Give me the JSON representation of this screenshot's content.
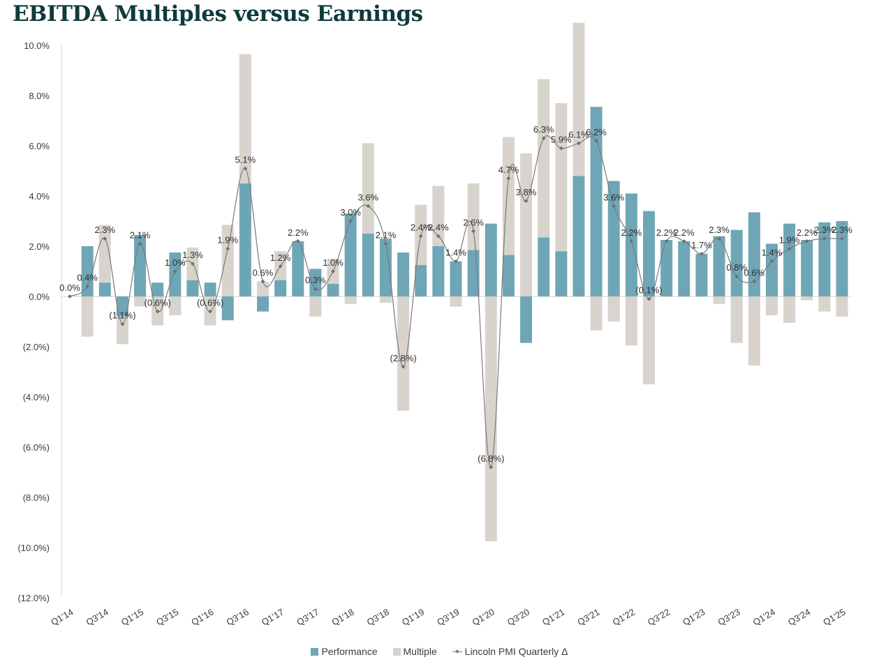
{
  "chart_data": {
    "type": "bar",
    "title": "EBITDA Multiples versus Earnings",
    "xlabel": "",
    "ylabel": "",
    "ylim": [
      -12,
      10
    ],
    "yticks": [
      10,
      8,
      6,
      4,
      2,
      0,
      -2,
      -4,
      -6,
      -8,
      -10,
      -12
    ],
    "ytick_labels": [
      "10.0%",
      "8.0%",
      "6.0%",
      "4.0%",
      "2.0%",
      "0.0%",
      "(2.0%)",
      "(4.0%)",
      "(6.0%)",
      "(8.0%)",
      "(10.0%)",
      "(12.0%)"
    ],
    "categories": [
      "Q1'14",
      "Q2'14",
      "Q3'14",
      "Q4'14",
      "Q1'15",
      "Q2'15",
      "Q3'15",
      "Q4'15",
      "Q1'16",
      "Q2'16",
      "Q3'16",
      "Q4'16",
      "Q1'17",
      "Q2'17",
      "Q3'17",
      "Q4'17",
      "Q1'18",
      "Q2'18",
      "Q3'18",
      "Q4'18",
      "Q1'19",
      "Q2'19",
      "Q3'19",
      "Q4'19",
      "Q1'20",
      "Q2'20",
      "Q3'20",
      "Q4'20",
      "Q1'21",
      "Q2'21",
      "Q3'21",
      "Q4'21",
      "Q1'22",
      "Q2'22",
      "Q3'22",
      "Q4'22",
      "Q1'23",
      "Q2'23",
      "Q3'23",
      "Q4'23",
      "Q1'24",
      "Q2'24",
      "Q3'24",
      "Q4'24",
      "Q1'25"
    ],
    "xtick_labels": [
      "Q1'14",
      "Q3'14",
      "Q1'15",
      "Q3'15",
      "Q1'16",
      "Q3'16",
      "Q1'17",
      "Q3'17",
      "Q1'18",
      "Q3'18",
      "Q1'19",
      "Q3'19",
      "Q1'20",
      "Q3'20",
      "Q1'21",
      "Q3'21",
      "Q1'22",
      "Q3'22",
      "Q1'23",
      "Q3'23",
      "Q1'24",
      "Q3'24",
      "Q1'25"
    ],
    "series": [
      {
        "name": "Performance",
        "type": "bar",
        "color": "#6fa6b6",
        "values": [
          0,
          2.0,
          0.55,
          -0.8,
          2.45,
          0.55,
          1.75,
          0.65,
          0.55,
          -0.95,
          4.5,
          -0.6,
          0.65,
          2.2,
          1.1,
          0.5,
          3.3,
          2.5,
          2.3,
          1.75,
          1.25,
          2.0,
          1.4,
          1.85,
          2.9,
          1.65,
          -1.85,
          2.35,
          1.8,
          4.8,
          7.55,
          4.6,
          4.1,
          3.4,
          2.25,
          2.2,
          1.7,
          2.4,
          2.65,
          3.35,
          2.1,
          2.9,
          2.25,
          2.95,
          3.0
        ]
      },
      {
        "name": "Multiple",
        "type": "bar",
        "color": "#d8d3cc",
        "values": [
          0,
          -1.6,
          2.3,
          -1.1,
          -0.4,
          -1.15,
          -0.75,
          1.3,
          -1.15,
          2.85,
          5.15,
          0.6,
          1.15,
          0,
          -0.8,
          1.0,
          -0.3,
          3.6,
          -0.25,
          -4.55,
          2.4,
          2.4,
          -0.4,
          2.65,
          -9.75,
          4.7,
          5.7,
          6.3,
          5.9,
          6.1,
          -1.35,
          -1.0,
          -1.95,
          -3.5,
          0,
          0,
          0,
          -0.3,
          -1.85,
          -2.75,
          -0.75,
          -1.05,
          -0.15,
          -0.6,
          -0.8
        ]
      },
      {
        "name": "Lincoln PMI Quarterly Δ",
        "type": "line",
        "color": "#7a7a7a",
        "values": [
          0.0,
          0.4,
          2.3,
          -1.1,
          2.1,
          -0.6,
          1.0,
          1.3,
          -0.6,
          1.9,
          5.1,
          0.6,
          1.2,
          2.2,
          0.3,
          1.0,
          3.0,
          3.6,
          2.1,
          -2.8,
          2.4,
          2.4,
          1.4,
          2.6,
          -6.8,
          4.7,
          3.8,
          6.3,
          5.9,
          6.1,
          6.2,
          3.6,
          2.2,
          -0.1,
          2.2,
          2.2,
          1.7,
          2.3,
          0.8,
          0.6,
          1.4,
          1.9,
          2.2,
          2.3,
          2.3
        ],
        "labels": [
          "0.0%",
          "0.4%",
          "2.3%",
          "(1.1%)",
          "2.1%",
          "(0.6%)",
          "1.0%",
          "1.3%",
          "(0.6%)",
          "1.9%",
          "5.1%",
          "0.6%",
          "1.2%",
          "2.2%",
          "0.3%",
          "1.0%",
          "3.0%",
          "3.6%",
          "2.1%",
          "(2.8%)",
          "2.4%",
          "2.4%",
          "1.4%",
          "2.6%",
          "(6.8%)",
          "4.7%",
          "3.8%",
          "6.3%",
          "5.9%",
          "6.1%",
          "6.2%",
          "3.6%",
          "2.2%",
          "(0.1%)",
          "2.2%",
          "2.2%",
          "1.7%",
          "2.3%",
          "0.8%",
          "0.6%",
          "1.4%",
          "1.9%",
          "2.2%",
          "2.3%",
          "2.3%"
        ]
      }
    ],
    "legend": [
      {
        "label": "Performance",
        "color": "#6fa6b6",
        "kind": "bar"
      },
      {
        "label": "Multiple",
        "color": "#d8d3cc",
        "kind": "bar"
      },
      {
        "label": "Lincoln PMI Quarterly Δ",
        "color": "#7a7a7a",
        "kind": "line"
      }
    ],
    "legend_position": "bottom-center",
    "grid": false
  }
}
